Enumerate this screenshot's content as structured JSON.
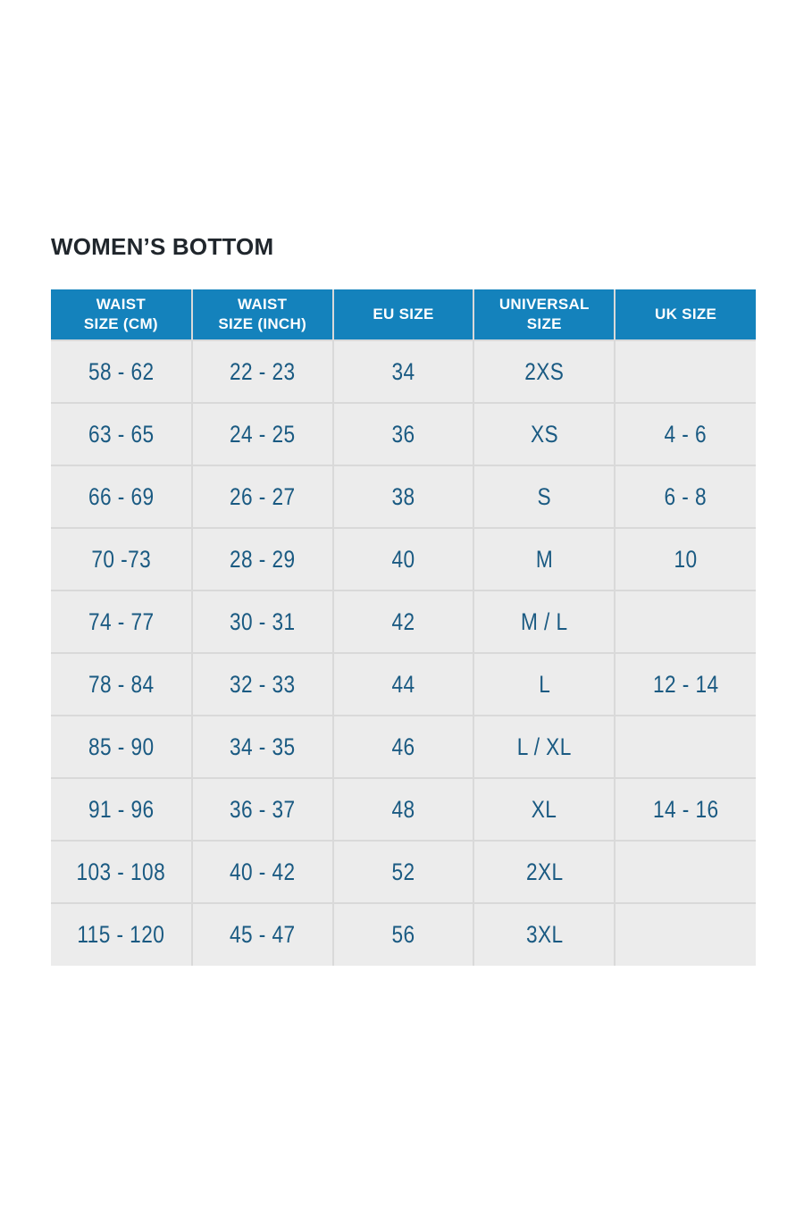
{
  "title": "WOMEN’S BOTTOM",
  "table": {
    "columns": [
      "WAIST\nSIZE (CM)",
      "WAIST\nSIZE (INCH)",
      "EU SIZE",
      "UNIVERSAL\nSIZE",
      "UK SIZE"
    ],
    "rows": [
      [
        "58 - 62",
        "22 - 23",
        "34",
        "2XS",
        ""
      ],
      [
        "63 - 65",
        "24 - 25",
        "36",
        "XS",
        "4 - 6"
      ],
      [
        "66 - 69",
        "26 - 27",
        "38",
        "S",
        "6 - 8"
      ],
      [
        "70 -73",
        "28 - 29",
        "40",
        "M",
        "10"
      ],
      [
        "74 - 77",
        "30 - 31",
        "42",
        "M / L",
        ""
      ],
      [
        "78 - 84",
        "32 - 33",
        "44",
        "L",
        "12 - 14"
      ],
      [
        "85 - 90",
        "34 - 35",
        "46",
        "L / XL",
        ""
      ],
      [
        "91 - 96",
        "36 - 37",
        "48",
        "XL",
        "14 - 16"
      ],
      [
        "103 - 108",
        "40 - 42",
        "52",
        "2XL",
        ""
      ],
      [
        "115 - 120",
        "45 - 47",
        "56",
        "3XL",
        ""
      ]
    ]
  },
  "colors": {
    "header_background": "#1482BC",
    "header_text": "#FFFFFF",
    "cell_background": "#ECECEC",
    "cell_text": "#1A5A82",
    "border": "#D9D9D9",
    "title_text": "#20262C",
    "page_background": "#FFFFFF"
  }
}
